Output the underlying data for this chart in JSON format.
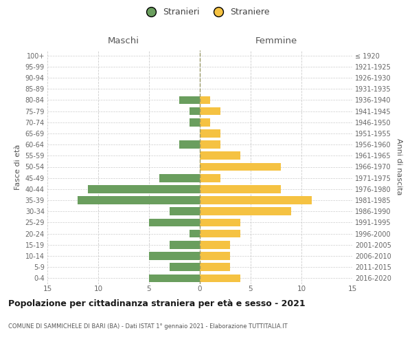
{
  "age_groups": [
    "0-4",
    "5-9",
    "10-14",
    "15-19",
    "20-24",
    "25-29",
    "30-34",
    "35-39",
    "40-44",
    "45-49",
    "50-54",
    "55-59",
    "60-64",
    "65-69",
    "70-74",
    "75-79",
    "80-84",
    "85-89",
    "90-94",
    "95-99",
    "100+"
  ],
  "birth_years": [
    "2016-2020",
    "2011-2015",
    "2006-2010",
    "2001-2005",
    "1996-2000",
    "1991-1995",
    "1986-1990",
    "1981-1985",
    "1976-1980",
    "1971-1975",
    "1966-1970",
    "1961-1965",
    "1956-1960",
    "1951-1955",
    "1946-1950",
    "1941-1945",
    "1936-1940",
    "1931-1935",
    "1926-1930",
    "1921-1925",
    "≤ 1920"
  ],
  "males": [
    5,
    3,
    5,
    3,
    1,
    5,
    3,
    12,
    11,
    4,
    0,
    0,
    2,
    0,
    1,
    1,
    2,
    0,
    0,
    0,
    0
  ],
  "females": [
    4,
    3,
    3,
    3,
    4,
    4,
    9,
    11,
    8,
    2,
    8,
    4,
    2,
    2,
    1,
    2,
    1,
    0,
    0,
    0,
    0
  ],
  "male_color": "#6a9e5e",
  "female_color": "#f5c242",
  "background_color": "#ffffff",
  "grid_color": "#cccccc",
  "center_line_color": "#999966",
  "title": "Popolazione per cittadinanza straniera per età e sesso - 2021",
  "subtitle": "COMUNE DI SAMMICHELE DI BARI (BA) - Dati ISTAT 1° gennaio 2021 - Elaborazione TUTTITALIA.IT",
  "label_maschi": "Maschi",
  "label_femmine": "Femmine",
  "ylabel_left": "Fasce di età",
  "ylabel_right": "Anni di nascita",
  "legend_males": "Stranieri",
  "legend_females": "Straniere",
  "xlim": 15,
  "xticks": [
    -15,
    -10,
    -5,
    0,
    5,
    10,
    15
  ],
  "xtick_labels": [
    "15",
    "10",
    "5",
    "0",
    "5",
    "10",
    "15"
  ]
}
